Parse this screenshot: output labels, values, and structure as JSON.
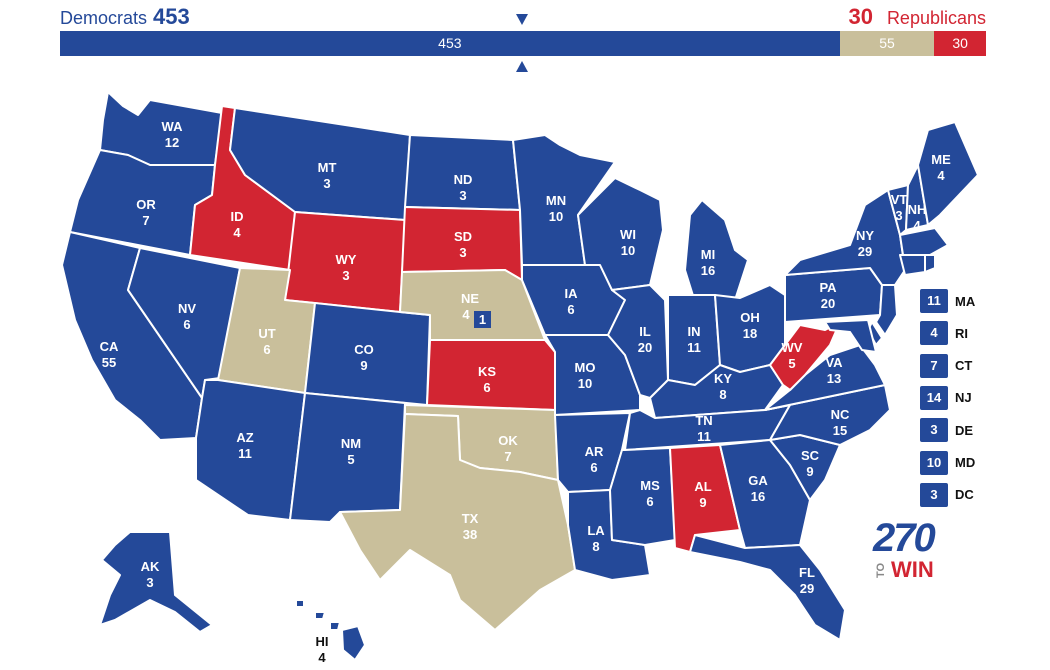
{
  "header": {
    "dem_label": "Democrats",
    "dem_total": "453",
    "rep_total": "30",
    "rep_label": "Republicans"
  },
  "bar": {
    "dem": "453",
    "tossup": "55",
    "rep": "30",
    "total": 538
  },
  "colors": {
    "dem": "#244999",
    "rep": "#d22532",
    "tossup": "#c9bf9b"
  },
  "states": [
    {
      "abbr": "WA",
      "ev": "12",
      "party": "dem"
    },
    {
      "abbr": "OR",
      "ev": "7",
      "party": "dem"
    },
    {
      "abbr": "CA",
      "ev": "55",
      "party": "dem"
    },
    {
      "abbr": "NV",
      "ev": "6",
      "party": "dem"
    },
    {
      "abbr": "ID",
      "ev": "4",
      "party": "rep"
    },
    {
      "abbr": "MT",
      "ev": "3",
      "party": "dem"
    },
    {
      "abbr": "WY",
      "ev": "3",
      "party": "rep"
    },
    {
      "abbr": "UT",
      "ev": "6",
      "party": "tossup"
    },
    {
      "abbr": "AZ",
      "ev": "11",
      "party": "dem"
    },
    {
      "abbr": "CO",
      "ev": "9",
      "party": "dem"
    },
    {
      "abbr": "NM",
      "ev": "5",
      "party": "dem"
    },
    {
      "abbr": "ND",
      "ev": "3",
      "party": "dem"
    },
    {
      "abbr": "SD",
      "ev": "3",
      "party": "rep"
    },
    {
      "abbr": "NE",
      "ev": "4",
      "party": "tossup"
    },
    {
      "abbr": "KS",
      "ev": "6",
      "party": "rep"
    },
    {
      "abbr": "OK",
      "ev": "7",
      "party": "tossup"
    },
    {
      "abbr": "TX",
      "ev": "38",
      "party": "tossup"
    },
    {
      "abbr": "MN",
      "ev": "10",
      "party": "dem"
    },
    {
      "abbr": "IA",
      "ev": "6",
      "party": "dem"
    },
    {
      "abbr": "MO",
      "ev": "10",
      "party": "dem"
    },
    {
      "abbr": "AR",
      "ev": "6",
      "party": "dem"
    },
    {
      "abbr": "LA",
      "ev": "8",
      "party": "dem"
    },
    {
      "abbr": "WI",
      "ev": "10",
      "party": "dem"
    },
    {
      "abbr": "IL",
      "ev": "20",
      "party": "dem"
    },
    {
      "abbr": "MI",
      "ev": "16",
      "party": "dem"
    },
    {
      "abbr": "IN",
      "ev": "11",
      "party": "dem"
    },
    {
      "abbr": "OH",
      "ev": "18",
      "party": "dem"
    },
    {
      "abbr": "KY",
      "ev": "8",
      "party": "dem"
    },
    {
      "abbr": "TN",
      "ev": "11",
      "party": "dem"
    },
    {
      "abbr": "MS",
      "ev": "6",
      "party": "dem"
    },
    {
      "abbr": "AL",
      "ev": "9",
      "party": "rep"
    },
    {
      "abbr": "GA",
      "ev": "16",
      "party": "dem"
    },
    {
      "abbr": "FL",
      "ev": "29",
      "party": "dem"
    },
    {
      "abbr": "SC",
      "ev": "9",
      "party": "dem"
    },
    {
      "abbr": "NC",
      "ev": "15",
      "party": "dem"
    },
    {
      "abbr": "VA",
      "ev": "13",
      "party": "dem"
    },
    {
      "abbr": "WV",
      "ev": "5",
      "party": "rep"
    },
    {
      "abbr": "PA",
      "ev": "20",
      "party": "dem"
    },
    {
      "abbr": "NY",
      "ev": "29",
      "party": "dem"
    },
    {
      "abbr": "VT",
      "ev": "3",
      "party": "dem"
    },
    {
      "abbr": "NH",
      "ev": "4",
      "party": "dem"
    },
    {
      "abbr": "ME",
      "ev": "4",
      "party": "dem"
    },
    {
      "abbr": "AK",
      "ev": "3",
      "party": "dem"
    },
    {
      "abbr": "HI",
      "ev": "4",
      "party": "dem"
    }
  ],
  "ne_district": {
    "value": "1",
    "party": "dem"
  },
  "small_states": [
    {
      "ev": "11",
      "abbr": "MA",
      "party": "dem"
    },
    {
      "ev": "4",
      "abbr": "RI",
      "party": "dem"
    },
    {
      "ev": "7",
      "abbr": "CT",
      "party": "dem"
    },
    {
      "ev": "14",
      "abbr": "NJ",
      "party": "dem"
    },
    {
      "ev": "3",
      "abbr": "DE",
      "party": "dem"
    },
    {
      "ev": "10",
      "abbr": "MD",
      "party": "dem"
    },
    {
      "ev": "3",
      "abbr": "DC",
      "party": "dem"
    }
  ],
  "logo": {
    "big": "270",
    "to": "TO",
    "win": "WIN"
  }
}
